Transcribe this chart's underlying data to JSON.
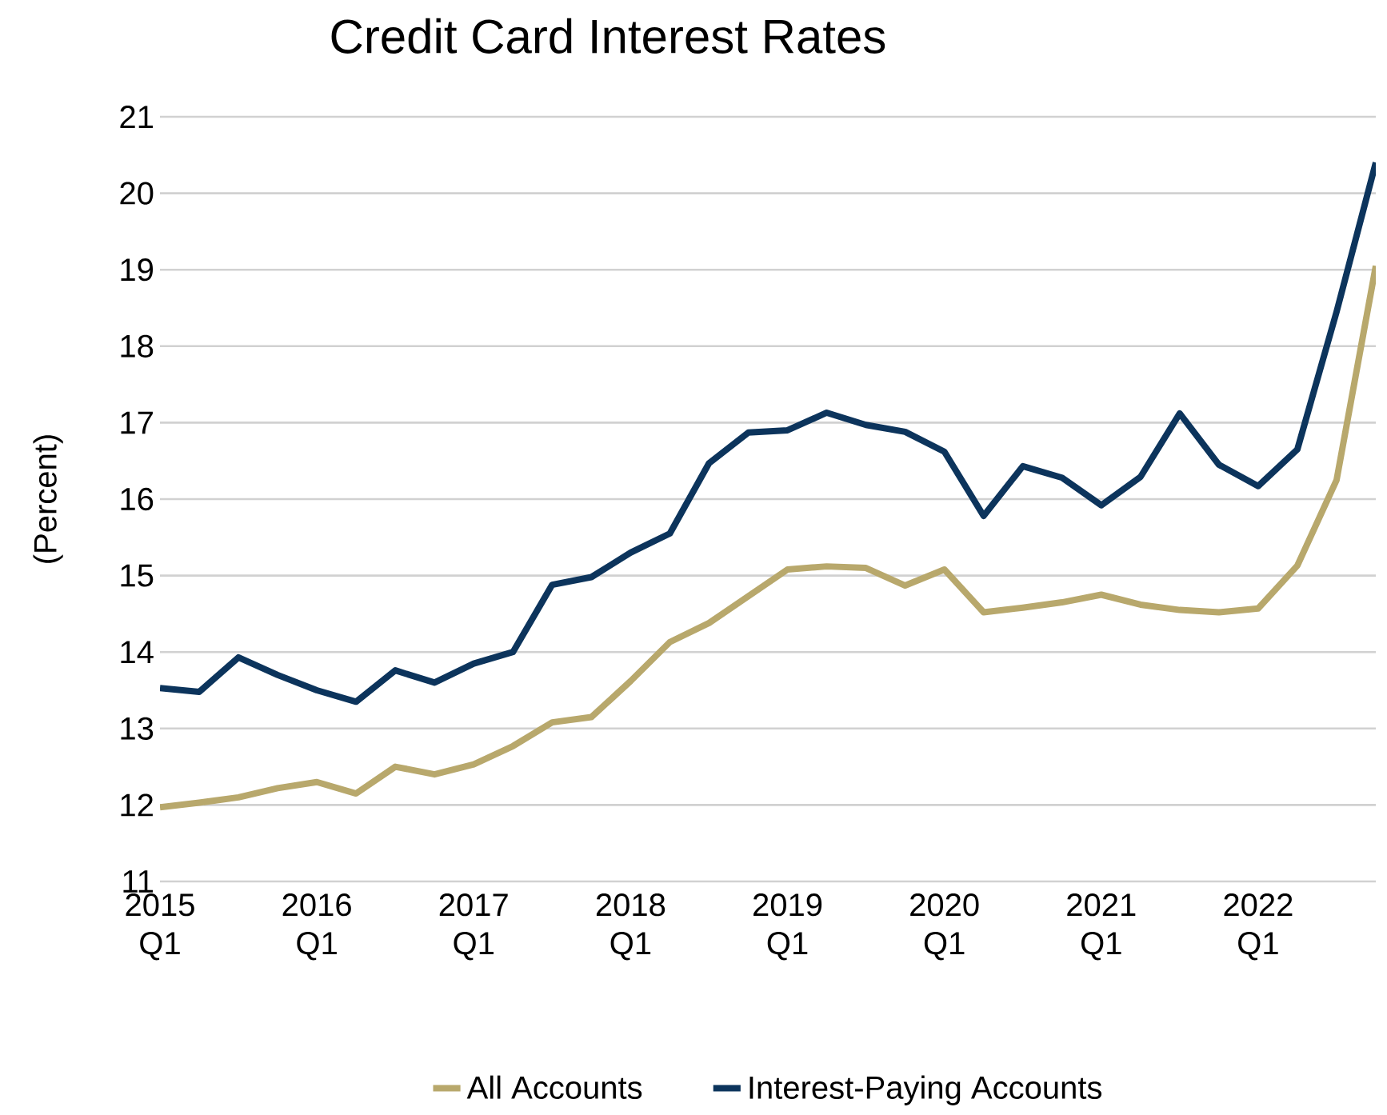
{
  "chart_data": {
    "type": "line",
    "title": "Credit Card Interest Rates",
    "ylabel": "(Percent)",
    "categories": [
      "2015 Q1",
      null,
      null,
      null,
      "2016 Q1",
      null,
      null,
      null,
      "2017 Q1",
      null,
      null,
      null,
      "2018 Q1",
      null,
      null,
      null,
      "2019 Q1",
      null,
      null,
      null,
      "2020 Q1",
      null,
      null,
      null,
      "2021 Q1",
      null,
      null,
      null,
      "2022 Q1",
      null,
      null,
      null
    ],
    "series": [
      {
        "name": "All Accounts",
        "color": "#b8a86c",
        "values": [
          11.97,
          12.03,
          12.1,
          12.22,
          12.3,
          12.15,
          12.5,
          12.4,
          12.53,
          12.77,
          13.08,
          13.15,
          13.62,
          14.13,
          14.38,
          14.73,
          15.08,
          15.12,
          15.1,
          14.87,
          15.08,
          14.52,
          14.58,
          14.65,
          14.75,
          14.62,
          14.55,
          14.52,
          14.57,
          15.13,
          16.25,
          19.05
        ]
      },
      {
        "name": "Interest-Paying Accounts",
        "color": "#0c345c",
        "values": [
          13.53,
          13.48,
          13.93,
          13.7,
          13.5,
          13.35,
          13.76,
          13.6,
          13.85,
          14.0,
          14.88,
          14.98,
          15.3,
          15.55,
          16.47,
          16.87,
          16.9,
          17.13,
          16.97,
          16.88,
          16.62,
          15.78,
          16.43,
          16.28,
          15.92,
          16.29,
          17.12,
          16.45,
          16.17,
          16.65,
          18.45,
          20.4
        ]
      }
    ],
    "ylim": [
      11,
      21
    ],
    "yticks": [
      11,
      12,
      13,
      14,
      15,
      16,
      17,
      18,
      19,
      20,
      21
    ],
    "grid": "y",
    "legend": "bottom",
    "line_style": "solid",
    "marker": "none"
  }
}
